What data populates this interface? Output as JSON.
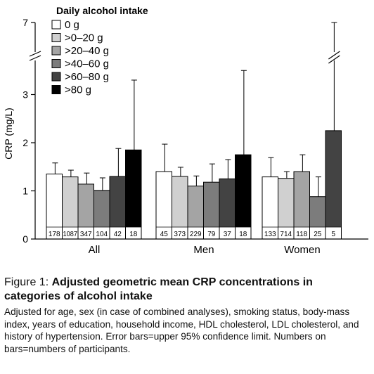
{
  "chart_data": {
    "type": "bar",
    "legend": {
      "title": "Daily alcohol intake",
      "placement": "top-left",
      "entries": [
        "0 g",
        ">0–20 g",
        ">20–40 g",
        ">40–60 g",
        ">60–80 g",
        ">80 g"
      ]
    },
    "ylabel": "CRP (mg/L)",
    "xlabel": "",
    "ylim": [
      0,
      7
    ],
    "y_axis_break": [
      3.6,
      6.9
    ],
    "y_ticks": [
      0,
      1,
      2,
      3,
      7
    ],
    "grid": false,
    "categories": [
      "All",
      "Men",
      "Women"
    ],
    "series": [
      {
        "name": "0 g",
        "color": "#ffffff",
        "values": [
          1.35,
          1.4,
          1.29
        ],
        "upper_ci": [
          1.58,
          1.97,
          1.69
        ],
        "n": [
          "178",
          "45",
          "133"
        ]
      },
      {
        "name": ">0–20 g",
        "color": "#d0d0d0",
        "values": [
          1.29,
          1.3,
          1.26
        ],
        "upper_ci": [
          1.43,
          1.49,
          1.4
        ],
        "n": [
          "1087",
          "373",
          "714"
        ]
      },
      {
        "name": ">20–40 g",
        "color": "#a4a4a4",
        "values": [
          1.14,
          1.1,
          1.4
        ],
        "upper_ci": [
          1.37,
          1.31,
          1.75
        ],
        "n": [
          "347",
          "229",
          "118"
        ]
      },
      {
        "name": ">40–60 g",
        "color": "#7c7c7c",
        "values": [
          1.01,
          1.18,
          0.88
        ],
        "upper_ci": [
          1.27,
          1.56,
          1.29
        ],
        "n": [
          "104",
          "79",
          "25"
        ]
      },
      {
        "name": ">60–80 g",
        "color": "#434343",
        "values": [
          1.3,
          1.25,
          2.25
        ],
        "upper_ci": [
          1.88,
          1.65,
          7
        ],
        "n": [
          "42",
          "37",
          "5"
        ]
      },
      {
        "name": ">80 g",
        "color": "#000000",
        "values": [
          1.85,
          1.75,
          null
        ],
        "upper_ci": [
          3.3,
          3.5,
          null
        ],
        "n": [
          "18",
          "18",
          ""
        ]
      }
    ]
  },
  "caption": {
    "label": "Figure 1: ",
    "title": "Adjusted geometric mean CRP concentrations in categories of alcohol intake",
    "note": "Adjusted for age, sex (in case of combined analyses), smoking status, body-mass index, years of education, household income, HDL cholesterol, LDL cholesterol, and history of hypertension. Error bars=upper 95% confidence limit. Numbers on bars=numbers of participants."
  }
}
